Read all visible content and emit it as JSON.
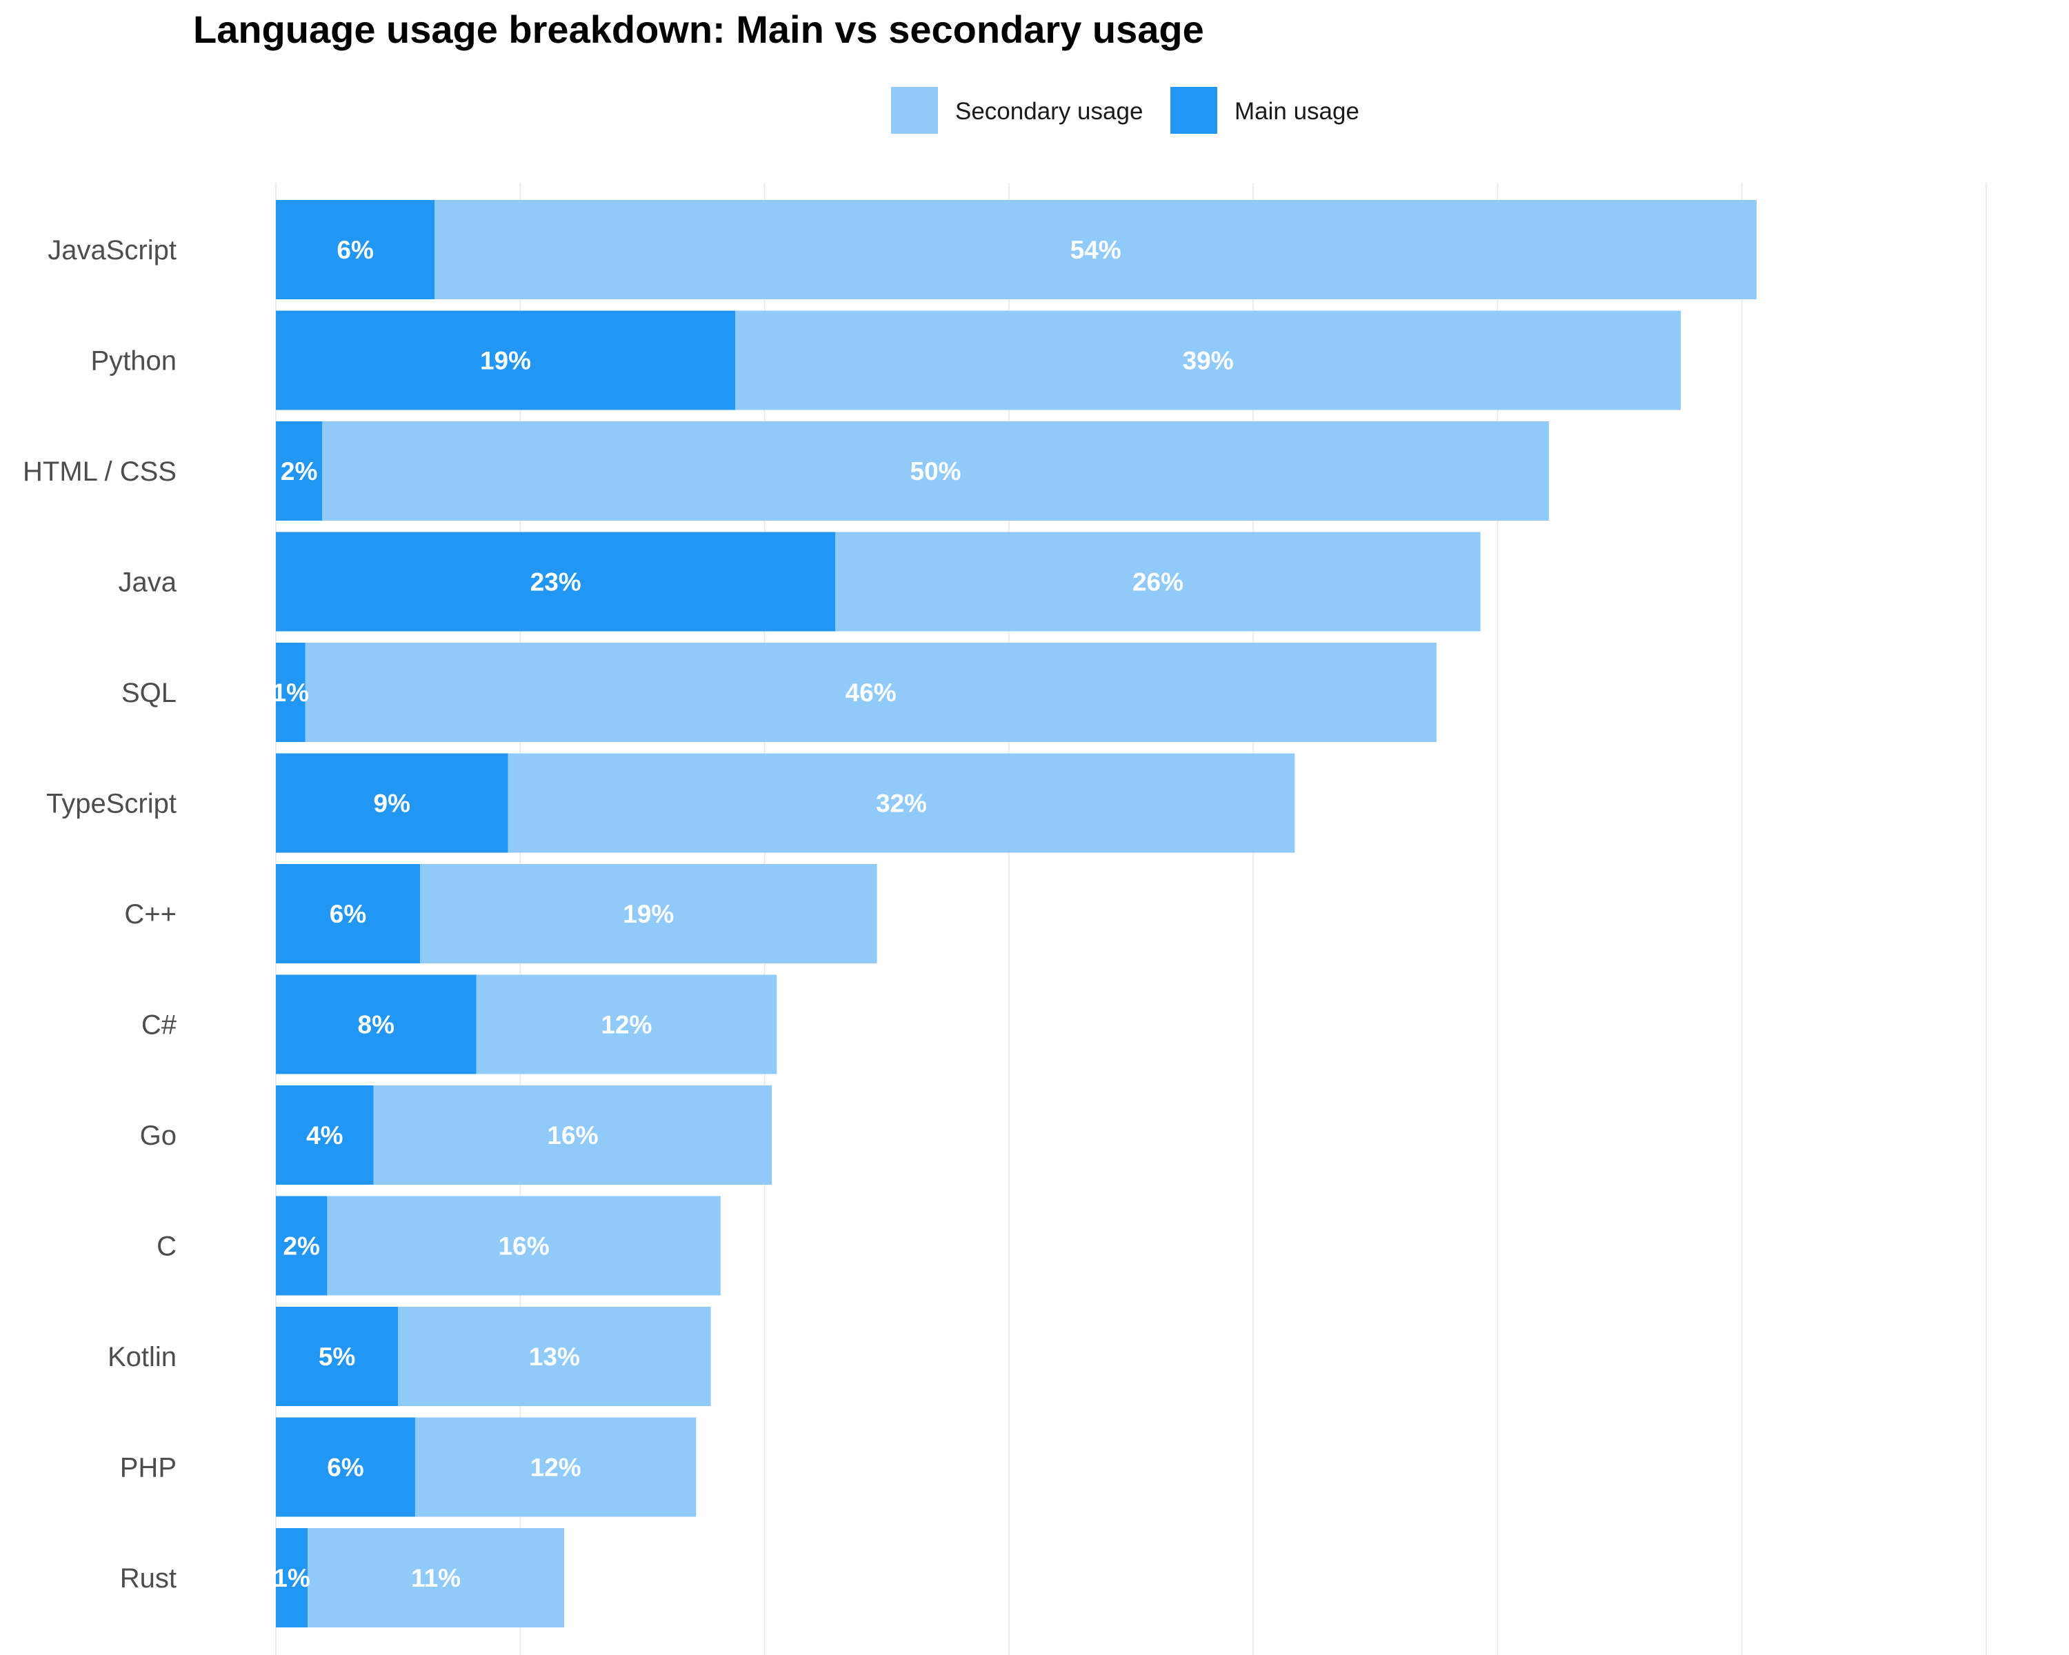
{
  "chart_data": {
    "type": "bar",
    "orientation": "horizontal",
    "stacked": true,
    "title": "Language usage breakdown: Main vs secondary usage",
    "legend": {
      "placement": "top-center",
      "entries": [
        "Secondary usage",
        "Main usage"
      ]
    },
    "categories": [
      "JavaScript",
      "Python",
      "HTML / CSS",
      "Java",
      "SQL",
      "TypeScript",
      "C++",
      "C#",
      "Go",
      "C",
      "Kotlin",
      "PHP",
      "Rust"
    ],
    "series": [
      {
        "name": "Main usage",
        "color": "#2196f3",
        "values": [
          6.5,
          18.8,
          1.9,
          22.9,
          1.2,
          9.5,
          5.9,
          8.2,
          4.0,
          2.1,
          5.0,
          5.7,
          1.3
        ],
        "labels": [
          "6%",
          "19%",
          "2%",
          "23%",
          "1%",
          "9%",
          "6%",
          "8%",
          "4%",
          "2%",
          "5%",
          "6%",
          "1%"
        ]
      },
      {
        "name": "Secondary usage",
        "color": "#90caf9",
        "values": [
          54.1,
          38.7,
          50.2,
          26.4,
          46.3,
          32.2,
          18.7,
          12.3,
          16.3,
          16.1,
          12.8,
          11.5,
          10.5
        ],
        "labels": [
          "54%",
          "39%",
          "50%",
          "26%",
          "46%",
          "32%",
          "19%",
          "12%",
          "16%",
          "16%",
          "13%",
          "12%",
          "11%"
        ]
      }
    ],
    "xlim": [
      0,
      70
    ],
    "x_axis_tick_labels_shown": false,
    "grid": {
      "vertical_major": true,
      "horizontal": false
    }
  }
}
